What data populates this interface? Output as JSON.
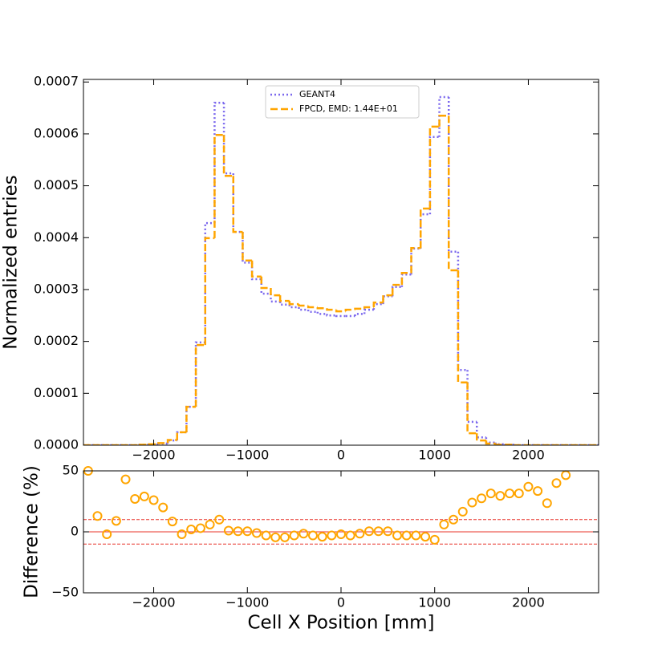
{
  "chart_data": [
    {
      "type": "histogram",
      "ylabel": "Normalized entries",
      "bins": [
        -2750,
        -2650,
        -2550,
        -2450,
        -2350,
        -2250,
        -2150,
        -2050,
        -1950,
        -1850,
        -1750,
        -1650,
        -1550,
        -1450,
        -1350,
        -1250,
        -1150,
        -1050,
        -950,
        -850,
        -750,
        -650,
        -550,
        -450,
        -350,
        -250,
        -150,
        -50,
        50,
        150,
        250,
        350,
        450,
        550,
        650,
        750,
        850,
        950,
        1050,
        1150,
        1250,
        1350,
        1450,
        1550,
        1650,
        1750,
        1850,
        1950,
        2050,
        2150,
        2250,
        2350,
        2450,
        2550,
        2650,
        2750
      ],
      "series": [
        {
          "name": "GEANT4",
          "color": "#7b68ee",
          "style": "dotted",
          "values": [
            0,
            0,
            0,
            0,
            0,
            0,
            1e-06,
            2e-06,
            3e-06,
            9e-06,
            2.5e-05,
            7.4e-05,
            0.000198,
            0.000428,
            0.00066,
            0.000524,
            0.000411,
            0.000352,
            0.00032,
            0.000292,
            0.000277,
            0.000271,
            0.000266,
            0.000261,
            0.000257,
            0.000253,
            0.00025,
            0.000249,
            0.000249,
            0.000253,
            0.000261,
            0.000272,
            0.000287,
            0.000305,
            0.000329,
            0.000379,
            0.000445,
            0.000594,
            0.000671,
            0.000373,
            0.000145,
            4.5e-05,
            1.5e-05,
            5e-06,
            2e-06,
            1e-06,
            0,
            0,
            0,
            0,
            0,
            0,
            0,
            0,
            0
          ]
        },
        {
          "name": "FPCD, EMD: 1.44E+01",
          "color": "#ffa500",
          "style": "dashed",
          "values": [
            0,
            0,
            0,
            0,
            0,
            0,
            1e-06,
            2e-06,
            4e-06,
            1e-05,
            2.5e-05,
            7.4e-05,
            0.000193,
            0.000399,
            0.000598,
            0.000519,
            0.000411,
            0.000356,
            0.000325,
            0.000303,
            0.000289,
            0.000278,
            0.000272,
            0.000269,
            0.000266,
            0.000264,
            0.000261,
            0.000258,
            0.000261,
            0.000263,
            0.000266,
            0.000275,
            0.000289,
            0.000309,
            0.000332,
            0.00038,
            0.000456,
            0.000614,
            0.000635,
            0.000337,
            0.000121,
            2.3e-05,
            9e-06,
            3e-06,
            1e-06,
            1e-06,
            0,
            0,
            0,
            0,
            0,
            0,
            0,
            0,
            0
          ]
        }
      ],
      "xlim": [
        -2750,
        2750
      ],
      "xticks": [
        {
          "value": -2000,
          "label": "−2000"
        },
        {
          "value": -1000,
          "label": "−1000"
        },
        0,
        1000,
        2000
      ],
      "ylim": [
        0,
        0.000705
      ],
      "yticks": [
        {
          "value": 0,
          "label": "0.0000"
        },
        {
          "value": 0.0001,
          "label": "0.0001"
        },
        {
          "value": 0.0002,
          "label": "0.0002"
        },
        {
          "value": 0.0003,
          "label": "0.0003"
        },
        {
          "value": 0.0004,
          "label": "0.0004"
        },
        {
          "value": 0.0005,
          "label": "0.0005"
        },
        {
          "value": 0.0006,
          "label": "0.0006"
        },
        {
          "value": 0.0007,
          "label": "0.0007"
        }
      ],
      "legend": "upper center"
    },
    {
      "type": "scatter",
      "xlabel": "Cell X Position [mm]",
      "ylabel": "Difference (%)",
      "color": "#ffa500",
      "x": [
        -2700,
        -2600,
        -2500,
        -2400,
        -2300,
        -2200,
        -2100,
        -2000,
        -1900,
        -1800,
        -1700,
        -1600,
        -1500,
        -1400,
        -1300,
        -1200,
        -1100,
        -1000,
        -900,
        -800,
        -700,
        -600,
        -500,
        -400,
        -300,
        -200,
        -100,
        0,
        100,
        200,
        300,
        400,
        500,
        600,
        700,
        800,
        900,
        1000,
        1100,
        1200,
        1300,
        1400,
        1500,
        1600,
        1700,
        1800,
        1900,
        2000,
        2100,
        2200,
        2300,
        2400,
        2500,
        2600,
        2700
      ],
      "values": [
        50,
        13,
        -2,
        9,
        43,
        27,
        29,
        26,
        20,
        8.5,
        -2,
        2,
        3,
        6,
        10,
        1,
        0.5,
        0.5,
        -1,
        -3,
        -4.5,
        -4.5,
        -3,
        -1.5,
        -3,
        -4,
        -3,
        -2,
        -3,
        -1.5,
        0.5,
        0.5,
        0.5,
        -3,
        -3,
        -3,
        -4,
        -6.5,
        6,
        10,
        16.5,
        24,
        27.5,
        31.5,
        29.5,
        31.5,
        31.5,
        37,
        33.5,
        23.5,
        40,
        46.5,
        null,
        null,
        null
      ],
      "hlines": [
        {
          "value": 0,
          "style": "solid"
        },
        {
          "value": 10,
          "style": "dashed"
        },
        {
          "value": -10,
          "style": "dashed"
        }
      ],
      "hline_color": "#e8352b",
      "xlim": [
        -2750,
        2750
      ],
      "xticks": [
        {
          "value": -2000,
          "label": "−2000"
        },
        {
          "value": -1000,
          "label": "−1000"
        },
        0,
        1000,
        2000
      ],
      "ylim": [
        -50,
        50
      ],
      "yticks": [
        {
          "value": -50,
          "label": "−50"
        },
        0,
        50
      ]
    }
  ]
}
